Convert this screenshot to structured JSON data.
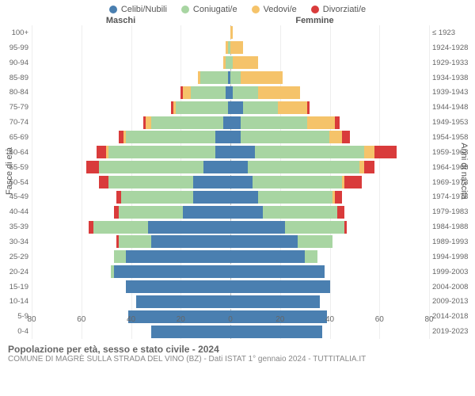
{
  "chart": {
    "type": "population-pyramid",
    "legend": [
      {
        "label": "Celibi/Nubili",
        "color": "#4a7fb0"
      },
      {
        "label": "Coniugati/e",
        "color": "#a8d5a2"
      },
      {
        "label": "Vedovi/e",
        "color": "#f5c36a"
      },
      {
        "label": "Divorziati/e",
        "color": "#d93b3b"
      }
    ],
    "header_left": "Maschi",
    "header_right": "Femmine",
    "y_left_title": "Fasce di età",
    "y_right_title": "Anni di nascita",
    "x_max": 80,
    "x_ticks": [
      80,
      60,
      40,
      20,
      0,
      20,
      40,
      60,
      80
    ],
    "title": "Popolazione per età, sesso e stato civile - 2024",
    "subtitle": "COMUNE DI MAGRÈ SULLA STRADA DEL VINO (BZ) - Dati ISTAT 1° gennaio 2024 - TUTTITALIA.IT",
    "background_color": "#ffffff",
    "grid_color": "#eeeeee",
    "rows": [
      {
        "age": "100+",
        "year": "≤ 1923",
        "m": [
          0,
          0,
          0,
          0
        ],
        "f": [
          0,
          0,
          1,
          0
        ]
      },
      {
        "age": "95-99",
        "year": "1924-1928",
        "m": [
          0,
          1,
          1,
          0
        ],
        "f": [
          0,
          0,
          5,
          0
        ]
      },
      {
        "age": "90-94",
        "year": "1929-1933",
        "m": [
          0,
          2,
          1,
          0
        ],
        "f": [
          0,
          1,
          10,
          0
        ]
      },
      {
        "age": "85-89",
        "year": "1934-1938",
        "m": [
          1,
          11,
          1,
          0
        ],
        "f": [
          0,
          4,
          17,
          0
        ]
      },
      {
        "age": "80-84",
        "year": "1939-1943",
        "m": [
          2,
          14,
          3,
          1
        ],
        "f": [
          1,
          10,
          17,
          0
        ]
      },
      {
        "age": "75-79",
        "year": "1944-1948",
        "m": [
          1,
          21,
          1,
          1
        ],
        "f": [
          5,
          14,
          12,
          1
        ]
      },
      {
        "age": "70-74",
        "year": "1949-1953",
        "m": [
          3,
          29,
          2,
          1
        ],
        "f": [
          4,
          27,
          11,
          2
        ]
      },
      {
        "age": "65-69",
        "year": "1954-1958",
        "m": [
          6,
          36,
          1,
          2
        ],
        "f": [
          4,
          36,
          5,
          3
        ]
      },
      {
        "age": "60-64",
        "year": "1959-1963",
        "m": [
          6,
          43,
          1,
          4
        ],
        "f": [
          10,
          44,
          4,
          9
        ]
      },
      {
        "age": "55-59",
        "year": "1964-1968",
        "m": [
          11,
          42,
          0,
          5
        ],
        "f": [
          7,
          45,
          2,
          4
        ]
      },
      {
        "age": "50-54",
        "year": "1969-1973",
        "m": [
          15,
          34,
          0,
          4
        ],
        "f": [
          9,
          36,
          1,
          7
        ]
      },
      {
        "age": "45-49",
        "year": "1974-1978",
        "m": [
          15,
          29,
          0,
          2
        ],
        "f": [
          11,
          30,
          1,
          3
        ]
      },
      {
        "age": "40-44",
        "year": "1979-1983",
        "m": [
          19,
          26,
          0,
          2
        ],
        "f": [
          13,
          30,
          0,
          3
        ]
      },
      {
        "age": "35-39",
        "year": "1984-1988",
        "m": [
          33,
          22,
          0,
          2
        ],
        "f": [
          22,
          24,
          0,
          1
        ]
      },
      {
        "age": "30-34",
        "year": "1989-1993",
        "m": [
          32,
          13,
          0,
          1
        ],
        "f": [
          27,
          14,
          0,
          0
        ]
      },
      {
        "age": "25-29",
        "year": "1994-1998",
        "m": [
          42,
          5,
          0,
          0
        ],
        "f": [
          30,
          5,
          0,
          0
        ]
      },
      {
        "age": "20-24",
        "year": "1999-2003",
        "m": [
          47,
          1,
          0,
          0
        ],
        "f": [
          38,
          0,
          0,
          0
        ]
      },
      {
        "age": "15-19",
        "year": "2004-2008",
        "m": [
          42,
          0,
          0,
          0
        ],
        "f": [
          40,
          0,
          0,
          0
        ]
      },
      {
        "age": "10-14",
        "year": "2009-2013",
        "m": [
          38,
          0,
          0,
          0
        ],
        "f": [
          36,
          0,
          0,
          0
        ]
      },
      {
        "age": "5-9",
        "year": "2014-2018",
        "m": [
          41,
          0,
          0,
          0
        ],
        "f": [
          39,
          0,
          0,
          0
        ]
      },
      {
        "age": "0-4",
        "year": "2019-2023",
        "m": [
          32,
          0,
          0,
          0
        ],
        "f": [
          37,
          0,
          0,
          0
        ]
      }
    ]
  }
}
